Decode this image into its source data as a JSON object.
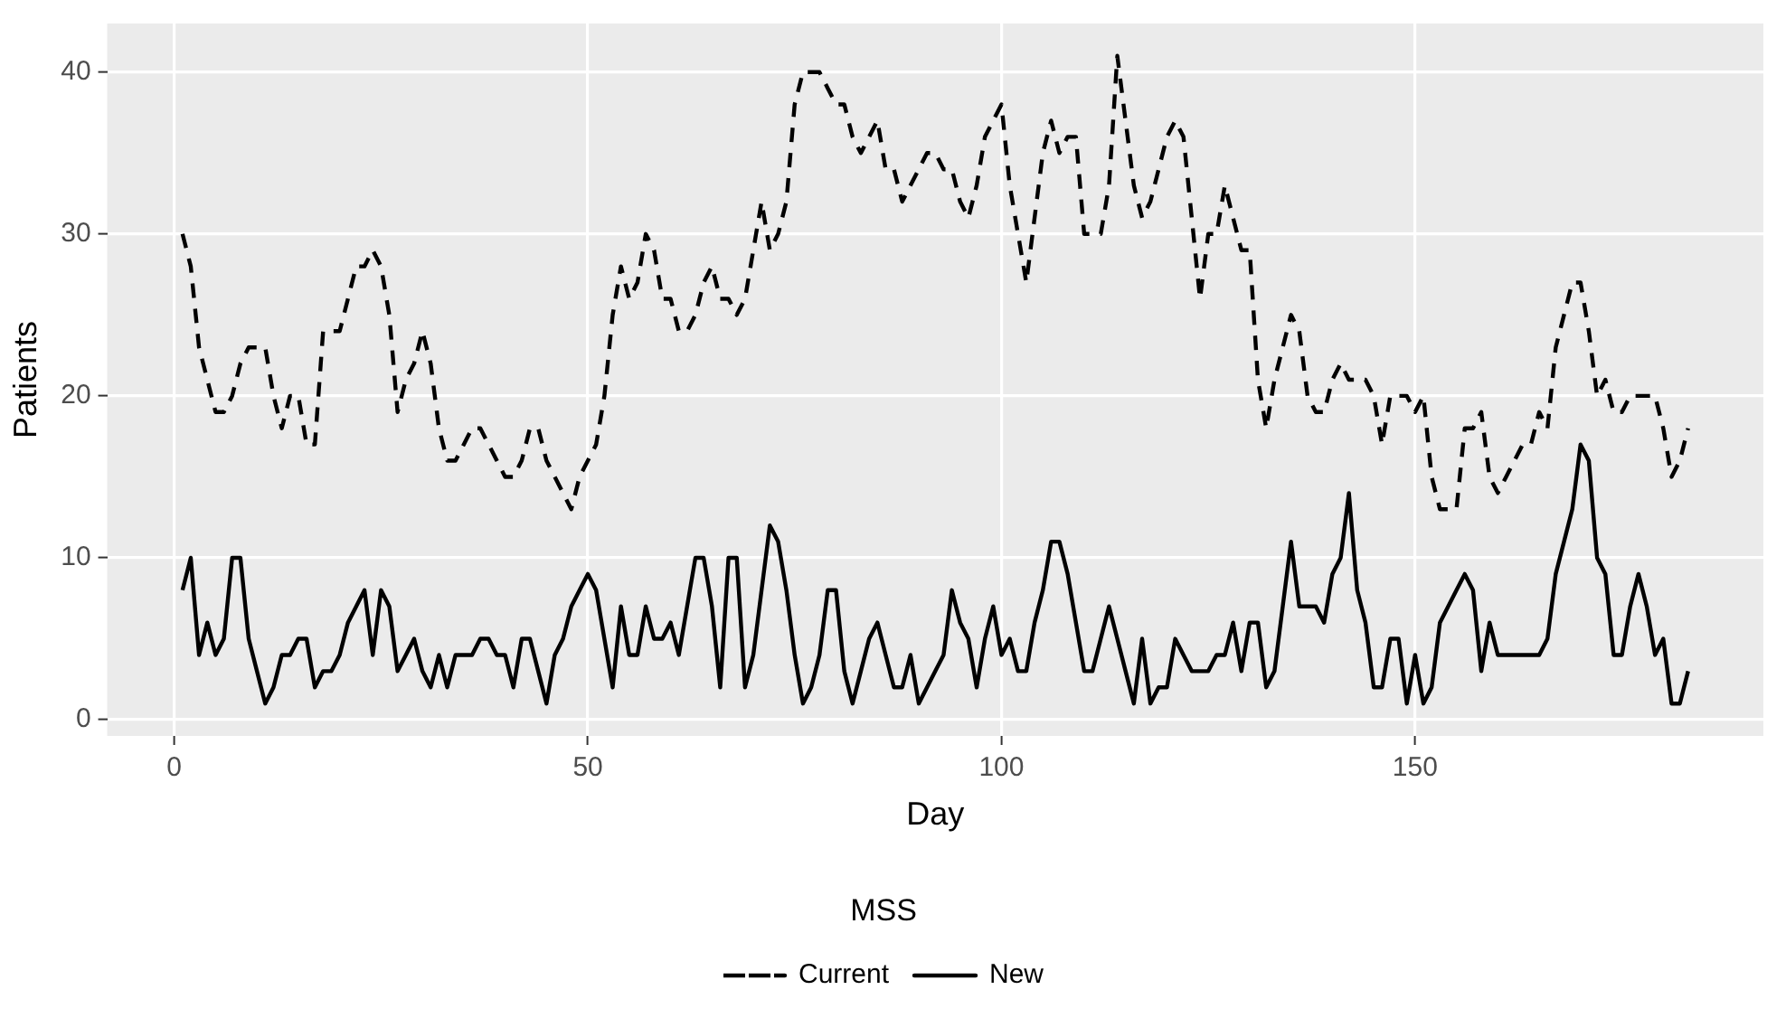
{
  "chart_data": {
    "type": "line",
    "xlabel": "Day",
    "ylabel": "Patients",
    "legend_title": "MSS",
    "legend": "bottom",
    "grid": true,
    "marker": "none",
    "xlim": [
      -8.1,
      192.1
    ],
    "xticks": [
      0,
      50,
      100,
      150
    ],
    "ylim": [
      -1,
      43
    ],
    "yticks": [
      0,
      10,
      20,
      30,
      40
    ],
    "x": [
      1,
      2,
      3,
      4,
      5,
      6,
      7,
      8,
      9,
      10,
      11,
      12,
      13,
      14,
      15,
      16,
      17,
      18,
      19,
      20,
      21,
      22,
      23,
      24,
      25,
      26,
      27,
      28,
      29,
      30,
      31,
      32,
      33,
      34,
      35,
      36,
      37,
      38,
      39,
      40,
      41,
      42,
      43,
      44,
      45,
      46,
      47,
      48,
      49,
      50,
      51,
      52,
      53,
      54,
      55,
      56,
      57,
      58,
      59,
      60,
      61,
      62,
      63,
      64,
      65,
      66,
      67,
      68,
      69,
      70,
      71,
      72,
      73,
      74,
      75,
      76,
      77,
      78,
      79,
      80,
      81,
      82,
      83,
      84,
      85,
      86,
      87,
      88,
      89,
      90,
      91,
      92,
      93,
      94,
      95,
      96,
      97,
      98,
      99,
      100,
      101,
      102,
      103,
      104,
      105,
      106,
      107,
      108,
      109,
      110,
      111,
      112,
      113,
      114,
      115,
      116,
      117,
      118,
      119,
      120,
      121,
      122,
      123,
      124,
      125,
      126,
      127,
      128,
      129,
      130,
      131,
      132,
      133,
      134,
      135,
      136,
      137,
      138,
      139,
      140,
      141,
      142,
      143,
      144,
      145,
      146,
      147,
      148,
      149,
      150,
      151,
      152,
      153,
      154,
      155,
      156,
      157,
      158,
      159,
      160,
      161,
      162,
      163,
      164,
      165,
      166,
      167,
      168,
      169,
      170,
      171,
      172,
      173,
      174,
      175,
      176,
      177,
      178,
      179,
      180,
      181,
      182,
      183
    ],
    "series": [
      {
        "name": "Current",
        "color": "#000000",
        "line_style": "dashed",
        "values": [
          30,
          28,
          23,
          21,
          19,
          19,
          20,
          22,
          23,
          23,
          23,
          20,
          18,
          20,
          20,
          17,
          17,
          24,
          24,
          24,
          26,
          28,
          28,
          29,
          28,
          25,
          19,
          21,
          22,
          24,
          22,
          18,
          16,
          16,
          17,
          18,
          18,
          17,
          16,
          15,
          15,
          16,
          18,
          18,
          16,
          15,
          14,
          13,
          15,
          16,
          17,
          20,
          25,
          28,
          26,
          27,
          30,
          29,
          26,
          26,
          24,
          24,
          25,
          27,
          28,
          26,
          26,
          25,
          26,
          29,
          32,
          29,
          30,
          32,
          38,
          40,
          40,
          40,
          39,
          38,
          38,
          36,
          35,
          36,
          37,
          34,
          34,
          32,
          33,
          34,
          35,
          35,
          34,
          34,
          32,
          31,
          33,
          36,
          37,
          38,
          33,
          30,
          27,
          31,
          35,
          37,
          35,
          36,
          36,
          30,
          30,
          30,
          33,
          41,
          37,
          33,
          31,
          32,
          34,
          36,
          37,
          36,
          31,
          26,
          30,
          30,
          33,
          31,
          29,
          29,
          21,
          18,
          21,
          23,
          25,
          24,
          20,
          19,
          19,
          21,
          22,
          21,
          21,
          21,
          20,
          17,
          20,
          20,
          20,
          19,
          20,
          15,
          13,
          13,
          13,
          18,
          18,
          19,
          15,
          14,
          15,
          16,
          17,
          17,
          19,
          18,
          23,
          25,
          27,
          27,
          24,
          20,
          21,
          19,
          19,
          20,
          20,
          20,
          20,
          18,
          15,
          16,
          18
        ]
      },
      {
        "name": "New",
        "color": "#000000",
        "line_style": "solid",
        "values": [
          8,
          10,
          4,
          6,
          4,
          5,
          10,
          10,
          5,
          3,
          1,
          2,
          4,
          4,
          5,
          5,
          2,
          3,
          3,
          4,
          6,
          7,
          8,
          4,
          8,
          7,
          3,
          4,
          5,
          3,
          2,
          4,
          2,
          4,
          4,
          4,
          5,
          5,
          4,
          4,
          2,
          5,
          5,
          3,
          1,
          4,
          5,
          7,
          8,
          9,
          8,
          5,
          2,
          7,
          4,
          4,
          7,
          5,
          5,
          6,
          4,
          7,
          10,
          10,
          7,
          2,
          10,
          10,
          2,
          4,
          8,
          12,
          11,
          8,
          4,
          1,
          2,
          4,
          8,
          8,
          3,
          1,
          3,
          5,
          6,
          4,
          2,
          2,
          4,
          1,
          2,
          3,
          4,
          8,
          6,
          5,
          2,
          5,
          7,
          4,
          5,
          3,
          3,
          6,
          8,
          11,
          11,
          9,
          6,
          3,
          3,
          5,
          7,
          5,
          3,
          1,
          5,
          1,
          2,
          2,
          5,
          4,
          3,
          3,
          3,
          4,
          4,
          6,
          3,
          6,
          6,
          2,
          3,
          7,
          11,
          7,
          7,
          7,
          6,
          9,
          10,
          14,
          8,
          6,
          2,
          2,
          5,
          5,
          1,
          4,
          1,
          2,
          6,
          7,
          8,
          9,
          8,
          3,
          6,
          4,
          4,
          4,
          4,
          4,
          4,
          5,
          9,
          11,
          13,
          17,
          16,
          10,
          9,
          4,
          4,
          7,
          9,
          7,
          4,
          5,
          1,
          1,
          3
        ]
      }
    ]
  }
}
